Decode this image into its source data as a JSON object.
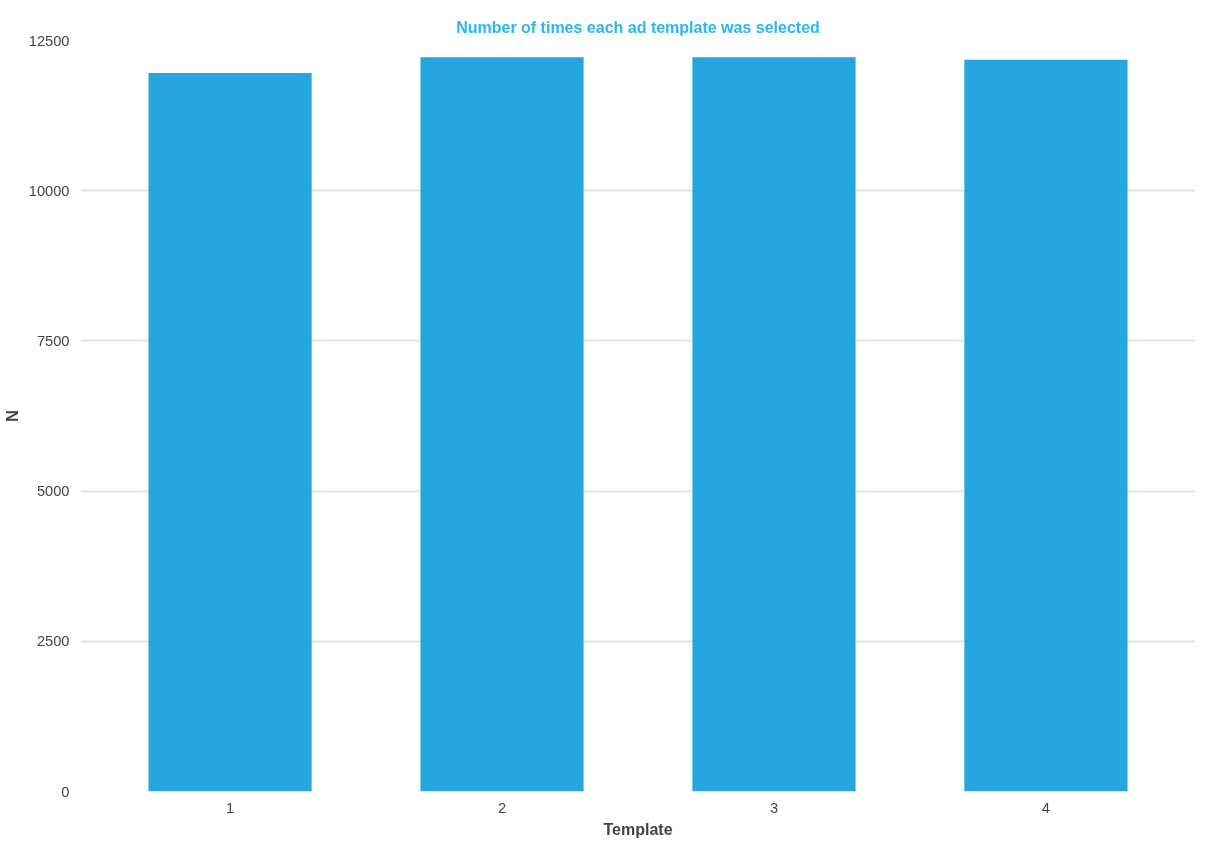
{
  "chart_data": {
    "type": "bar",
    "title": "Number of times each ad template was selected",
    "xlabel": "Template",
    "ylabel": "N",
    "categories": [
      "1",
      "2",
      "3",
      "4"
    ],
    "series": [
      {
        "color": "#25a6de",
        "values": [
          11960,
          12220,
          12220,
          12180
        ]
      }
    ],
    "ylim": [
      0,
      12500
    ],
    "yticks": [
      0,
      2500,
      5000,
      7500,
      10000,
      12500
    ],
    "grid": "y"
  }
}
